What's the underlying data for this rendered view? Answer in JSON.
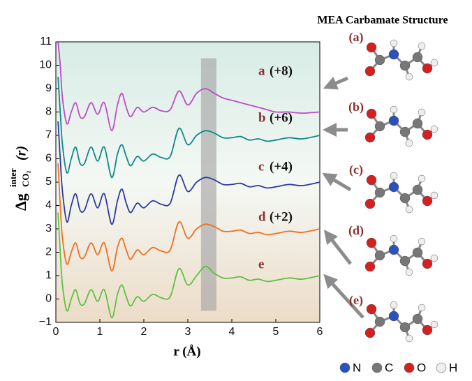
{
  "chart_data": {
    "type": "line",
    "side_title": "MEA Carbamate Structure",
    "xlabel": "r (Å)",
    "ylabel": {
      "main": "Δg",
      "superscript": "inter",
      "subscript": "CO₂",
      "argument": "(r)"
    },
    "xlim": [
      0,
      6
    ],
    "ylim": [
      -1,
      11
    ],
    "xticks": [
      0,
      1,
      2,
      3,
      4,
      5,
      6
    ],
    "yticks": [
      {
        "value": -1,
        "label": "−1"
      },
      0,
      1,
      2,
      3,
      4,
      5,
      6,
      7,
      8,
      9,
      10,
      11
    ],
    "highlight": {
      "x": [
        3.3,
        3.65
      ],
      "y": [
        -0.5,
        10.3
      ],
      "color": "#a0a0a0"
    },
    "x": [
      0.05,
      0.1,
      0.15,
      0.25,
      0.35,
      0.45,
      0.55,
      0.65,
      0.8,
      0.95,
      1.1,
      1.27,
      1.4,
      1.5,
      1.6,
      1.7,
      1.85,
      2.0,
      2.2,
      2.4,
      2.6,
      2.8,
      3.0,
      3.2,
      3.4,
      3.6,
      3.8,
      4.0,
      4.2,
      4.4,
      4.6,
      4.8,
      5.0,
      5.3,
      5.6,
      6.0
    ],
    "series": [
      {
        "name": "a",
        "shift": "(+8)",
        "color": "#c04cc0",
        "values": [
          11,
          10,
          8.6,
          7.5,
          8.0,
          8.4,
          7.8,
          7.8,
          8.4,
          7.9,
          8.4,
          7.2,
          8.3,
          8.8,
          8.2,
          7.8,
          8.2,
          8.0,
          8.2,
          8.05,
          8.1,
          8.9,
          8.3,
          8.8,
          9.0,
          8.8,
          8.6,
          8.5,
          8.4,
          8.3,
          8.2,
          8.1,
          8.0,
          8.0,
          7.95,
          8.0
        ]
      },
      {
        "name": "b",
        "shift": "(+6)",
        "color": "#108888",
        "values": [
          9.5,
          8.0,
          6.6,
          5.4,
          6.0,
          6.5,
          5.8,
          5.8,
          6.5,
          5.9,
          6.5,
          5.2,
          6.2,
          6.6,
          6.1,
          5.7,
          6.1,
          5.9,
          6.2,
          6.05,
          6.1,
          7.3,
          6.6,
          7.0,
          7.2,
          7.1,
          6.9,
          6.9,
          6.95,
          6.8,
          6.85,
          6.75,
          6.8,
          6.9,
          6.85,
          7.0
        ]
      },
      {
        "name": "c",
        "shift": "(+4)",
        "color": "#2c3c9c",
        "values": [
          7.6,
          6.0,
          4.6,
          3.3,
          4.0,
          4.5,
          3.8,
          3.8,
          4.5,
          3.9,
          4.5,
          3.2,
          4.2,
          4.7,
          4.1,
          3.7,
          4.1,
          3.9,
          4.2,
          4.05,
          4.1,
          5.3,
          4.6,
          5.0,
          5.2,
          5.1,
          4.9,
          4.9,
          4.95,
          4.8,
          4.85,
          4.75,
          4.8,
          4.9,
          4.85,
          5.0
        ]
      },
      {
        "name": "d",
        "shift": "(+2)",
        "color": "#f07020",
        "values": [
          5.8,
          4.0,
          2.6,
          1.5,
          2.0,
          2.4,
          1.8,
          1.8,
          2.4,
          1.9,
          2.4,
          1.2,
          2.2,
          2.6,
          2.1,
          1.7,
          2.1,
          1.9,
          2.2,
          2.05,
          2.1,
          3.3,
          2.6,
          3.0,
          3.2,
          3.1,
          2.9,
          2.9,
          2.95,
          2.8,
          2.85,
          2.75,
          2.8,
          2.9,
          2.85,
          3.0
        ]
      },
      {
        "name": "e",
        "color": "#60c040",
        "values": [
          3.7,
          2.0,
          0.6,
          -0.5,
          0.0,
          0.4,
          -0.2,
          -0.2,
          0.4,
          -0.1,
          0.4,
          -0.8,
          0.2,
          0.6,
          0.1,
          -0.3,
          0.1,
          -0.1,
          0.2,
          0.05,
          0.1,
          1.3,
          0.6,
          1.0,
          1.4,
          1.1,
          0.9,
          0.9,
          0.95,
          0.8,
          0.85,
          0.75,
          0.8,
          0.9,
          0.85,
          1.0
        ]
      }
    ],
    "molecules": {
      "labels": [
        "(a)",
        "(b)",
        "(c)",
        "(d)",
        "(e)"
      ],
      "color": "#8b3030"
    },
    "atom_legend": [
      {
        "name": "N",
        "color": "#2a52be"
      },
      {
        "name": "C",
        "color": "#777777"
      },
      {
        "name": "O",
        "color": "#d42020"
      },
      {
        "name": "H",
        "color": "#eeeeee"
      }
    ]
  }
}
